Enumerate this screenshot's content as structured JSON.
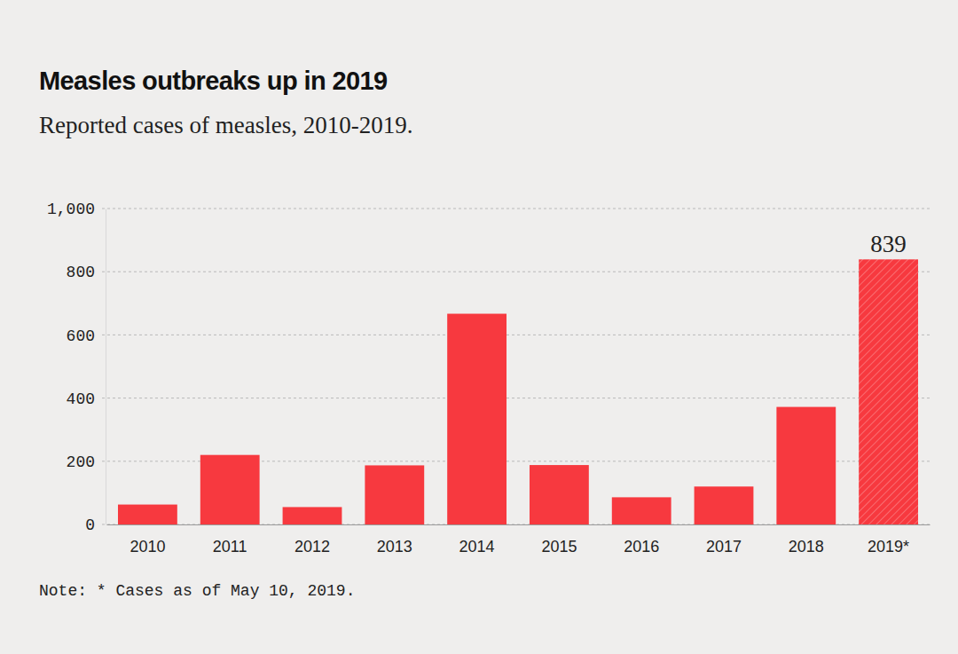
{
  "chart_data": {
    "type": "bar",
    "title": "Measles outbreaks up in 2019",
    "subtitle": "Reported cases of measles, 2010-2019.",
    "categories": [
      "2010",
      "2011",
      "2012",
      "2013",
      "2014",
      "2015",
      "2016",
      "2017",
      "2018",
      "2019*"
    ],
    "values": [
      63,
      220,
      55,
      187,
      667,
      188,
      86,
      120,
      372,
      839
    ],
    "data_labels": true,
    "value_labels": [
      null,
      null,
      null,
      null,
      null,
      null,
      null,
      null,
      null,
      "839"
    ],
    "color": "#f7393f",
    "ylim": [
      0,
      1000
    ],
    "yticks": [
      0,
      200,
      400,
      600,
      800,
      {
        "value": 1000,
        "label": "1,000"
      }
    ],
    "grid": true,
    "note": "Note: * Cases as of May 10, 2019."
  }
}
